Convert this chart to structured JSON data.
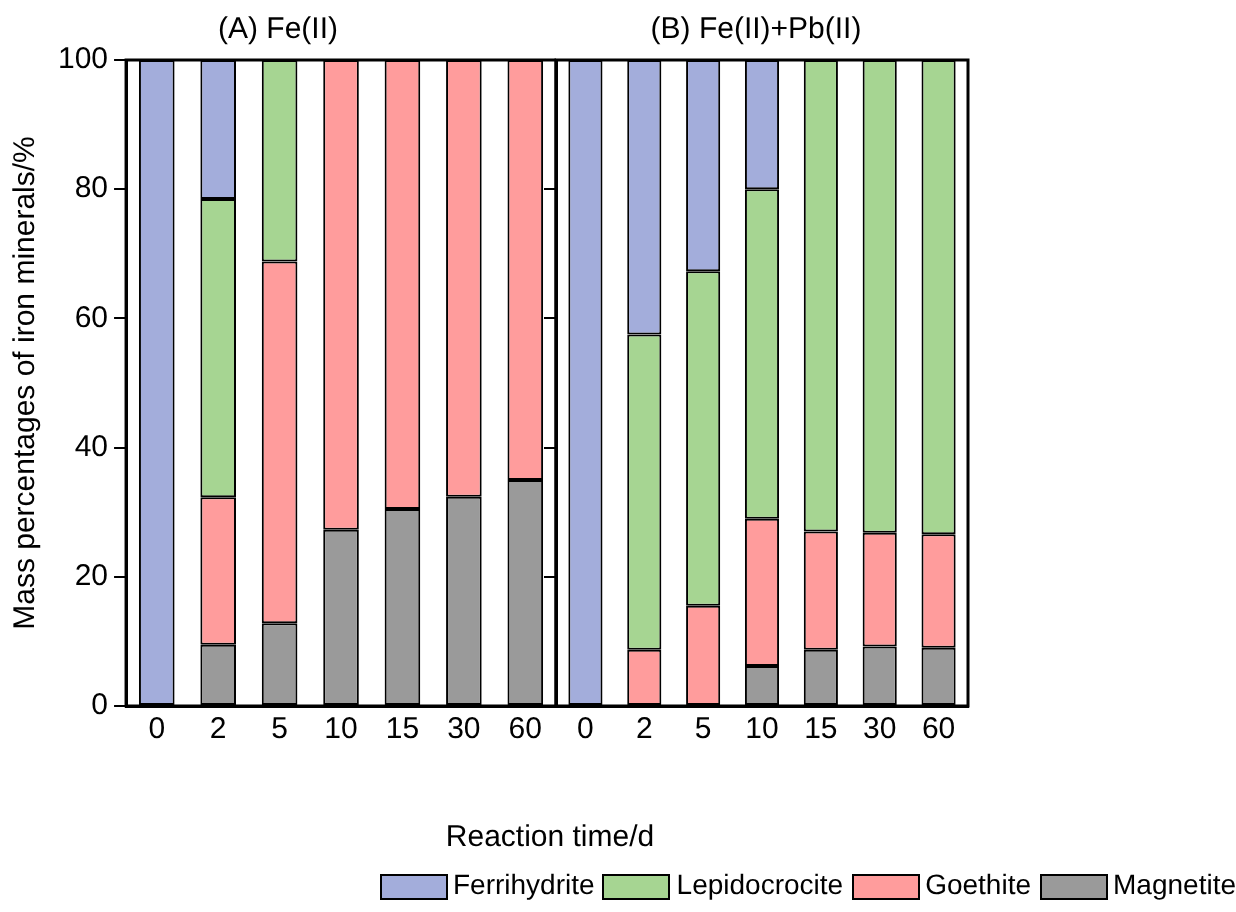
{
  "chart_data": [
    {
      "type": "bar",
      "title": "(A) Fe(II)",
      "ylabel": "Mass percentages of iron minerals/%",
      "xlabel": "Reaction time/d",
      "legend": "bottom",
      "stacked": true,
      "grid": false,
      "categories": [
        "0",
        "2",
        "5",
        "10",
        "15",
        "30",
        "60"
      ],
      "ylim": [
        0,
        100
      ],
      "yticks": [
        0,
        20,
        40,
        60,
        80,
        100
      ],
      "series": [
        {
          "name": "Magnetite",
          "color": "#9a9a9a",
          "values": [
            0,
            9.5,
            12.8,
            27.3,
            30.5,
            32.4,
            35
          ]
        },
        {
          "name": "Goethite",
          "color": "#ff9c9c",
          "values": [
            0,
            22.8,
            56,
            72.7,
            69.5,
            67.6,
            65
          ]
        },
        {
          "name": "Lepidocrocite",
          "color": "#a6d592",
          "values": [
            0,
            46.2,
            31.2,
            0,
            0,
            0,
            0
          ]
        },
        {
          "name": "Ferrihydrite",
          "color": "#a3addb",
          "values": [
            100,
            21.5,
            0,
            0,
            0,
            0,
            0
          ]
        }
      ]
    },
    {
      "type": "bar",
      "title": "(B) Fe(II)+Pb(II)",
      "stacked": true,
      "grid": false,
      "tick_labels": "x",
      "categories": [
        "0",
        "2",
        "5",
        "10",
        "15",
        "30",
        "60"
      ],
      "ylim": [
        0,
        100
      ],
      "yticks": [
        0,
        20,
        40,
        60,
        80,
        100
      ],
      "series": [
        {
          "color": "#9a9a9a",
          "values": [
            0,
            0,
            0,
            6.2,
            8.7,
            9.2,
            9
          ]
        },
        {
          "color": "#ff9c9c",
          "values": [
            0,
            8.7,
            15.5,
            22.8,
            18.3,
            17.6,
            17.6
          ]
        },
        {
          "color": "#a6d592",
          "values": [
            0,
            48.8,
            51.8,
            51,
            73,
            73.2,
            73.4
          ]
        },
        {
          "color": "#a3addb",
          "values": [
            100,
            42.5,
            32.7,
            20,
            0,
            0,
            0
          ]
        }
      ]
    }
  ]
}
